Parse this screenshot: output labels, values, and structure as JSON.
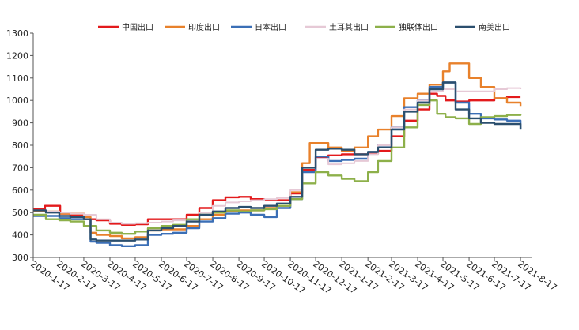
{
  "chart_data": {
    "type": "line",
    "title": "",
    "xlabel": "",
    "ylabel": "",
    "ylim": [
      300,
      1300
    ],
    "yticks": [
      300,
      400,
      500,
      600,
      700,
      800,
      900,
      1000,
      1100,
      1200,
      1300
    ],
    "x_tick_labels": [
      "2020-1-17",
      "2020-2-17",
      "2020-3-17",
      "2020-4-17",
      "2020-5-17",
      "2020-6-17",
      "2020-7-17",
      "2020-8-17",
      "2020-9-17",
      "2020-10-17",
      "2020-11-17",
      "2020-12-17",
      "2021-1-17",
      "2021-2-17",
      "2021-3-17",
      "2021-4-17",
      "2021-5-17",
      "2021-6-17",
      "2021-7-17",
      "2021-8-17"
    ],
    "grid": false,
    "legend_position": "top",
    "series": [
      {
        "name": "中国出口",
        "color": "#e31a1c",
        "points": [
          [
            "2020-1-17",
            515
          ],
          [
            "2020-1-31",
            530
          ],
          [
            "2020-2-17",
            530
          ],
          [
            "2020-2-18",
            495
          ],
          [
            "2020-3-1",
            490
          ],
          [
            "2020-3-17",
            470
          ],
          [
            "2020-4-1",
            465
          ],
          [
            "2020-4-17",
            450
          ],
          [
            "2020-5-1",
            445
          ],
          [
            "2020-5-17",
            448
          ],
          [
            "2020-6-1",
            470
          ],
          [
            "2020-6-17",
            470
          ],
          [
            "2020-7-1",
            470
          ],
          [
            "2020-7-17",
            490
          ],
          [
            "2020-8-1",
            520
          ],
          [
            "2020-8-17",
            555
          ],
          [
            "2020-9-1",
            568
          ],
          [
            "2020-9-17",
            570
          ],
          [
            "2020-10-1",
            560
          ],
          [
            "2020-10-17",
            555
          ],
          [
            "2020-11-1",
            555
          ],
          [
            "2020-11-17",
            585
          ],
          [
            "2020-12-1",
            690
          ],
          [
            "2020-12-17",
            745
          ],
          [
            "2021-1-1",
            755
          ],
          [
            "2021-1-17",
            760
          ],
          [
            "2021-2-1",
            760
          ],
          [
            "2021-2-17",
            762
          ],
          [
            "2021-3-1",
            775
          ],
          [
            "2021-3-17",
            840
          ],
          [
            "2021-4-1",
            910
          ],
          [
            "2021-4-17",
            960
          ],
          [
            "2021-5-1",
            1030
          ],
          [
            "2021-5-10",
            1020
          ],
          [
            "2021-5-20",
            1000
          ],
          [
            "2021-6-1",
            995
          ],
          [
            "2021-6-17",
            1000
          ],
          [
            "2021-7-1",
            1000
          ],
          [
            "2021-7-17",
            1010
          ],
          [
            "2021-8-1",
            1015
          ],
          [
            "2021-8-17",
            1015
          ]
        ]
      },
      {
        "name": "印度出口",
        "color": "#e8812b",
        "points": [
          [
            "2020-1-17",
            505
          ],
          [
            "2020-2-1",
            505
          ],
          [
            "2020-2-17",
            495
          ],
          [
            "2020-3-1",
            495
          ],
          [
            "2020-3-17",
            480
          ],
          [
            "2020-3-25",
            410
          ],
          [
            "2020-4-1",
            400
          ],
          [
            "2020-4-17",
            395
          ],
          [
            "2020-5-1",
            385
          ],
          [
            "2020-5-17",
            390
          ],
          [
            "2020-6-1",
            420
          ],
          [
            "2020-6-17",
            425
          ],
          [
            "2020-7-1",
            425
          ],
          [
            "2020-7-17",
            440
          ],
          [
            "2020-8-1",
            470
          ],
          [
            "2020-8-17",
            490
          ],
          [
            "2020-9-1",
            505
          ],
          [
            "2020-9-17",
            510
          ],
          [
            "2020-10-1",
            510
          ],
          [
            "2020-10-17",
            520
          ],
          [
            "2020-11-1",
            530
          ],
          [
            "2020-11-17",
            590
          ],
          [
            "2020-12-1",
            720
          ],
          [
            "2020-12-10",
            810
          ],
          [
            "2020-12-17",
            810
          ],
          [
            "2021-1-1",
            790
          ],
          [
            "2021-1-17",
            775
          ],
          [
            "2021-2-1",
            790
          ],
          [
            "2021-2-17",
            840
          ],
          [
            "2021-3-1",
            870
          ],
          [
            "2021-3-17",
            930
          ],
          [
            "2021-4-1",
            1010
          ],
          [
            "2021-4-17",
            1030
          ],
          [
            "2021-5-1",
            1070
          ],
          [
            "2021-5-17",
            1130
          ],
          [
            "2021-5-25",
            1165
          ],
          [
            "2021-6-5",
            1165
          ],
          [
            "2021-6-17",
            1100
          ],
          [
            "2021-7-1",
            1060
          ],
          [
            "2021-7-17",
            1010
          ],
          [
            "2021-8-1",
            990
          ],
          [
            "2021-8-17",
            975
          ]
        ]
      },
      {
        "name": "日本出口",
        "color": "#3b6fb6",
        "points": [
          [
            "2020-1-17",
            485
          ],
          [
            "2020-2-1",
            485
          ],
          [
            "2020-2-17",
            475
          ],
          [
            "2020-3-1",
            470
          ],
          [
            "2020-3-17",
            470
          ],
          [
            "2020-3-25",
            370
          ],
          [
            "2020-4-1",
            365
          ],
          [
            "2020-4-17",
            355
          ],
          [
            "2020-5-1",
            350
          ],
          [
            "2020-5-17",
            355
          ],
          [
            "2020-6-1",
            400
          ],
          [
            "2020-6-17",
            405
          ],
          [
            "2020-7-1",
            410
          ],
          [
            "2020-7-17",
            430
          ],
          [
            "2020-8-1",
            460
          ],
          [
            "2020-8-17",
            475
          ],
          [
            "2020-9-1",
            495
          ],
          [
            "2020-9-17",
            500
          ],
          [
            "2020-10-1",
            490
          ],
          [
            "2020-10-17",
            480
          ],
          [
            "2020-11-1",
            520
          ],
          [
            "2020-11-17",
            560
          ],
          [
            "2020-12-1",
            680
          ],
          [
            "2020-12-17",
            750
          ],
          [
            "2021-1-1",
            730
          ],
          [
            "2021-1-17",
            735
          ],
          [
            "2021-2-1",
            740
          ],
          [
            "2021-2-17",
            770
          ],
          [
            "2021-3-1",
            800
          ],
          [
            "2021-3-17",
            880
          ],
          [
            "2021-4-1",
            970
          ],
          [
            "2021-4-17",
            1000
          ],
          [
            "2021-5-1",
            1060
          ],
          [
            "2021-5-17",
            1080
          ],
          [
            "2021-6-1",
            990
          ],
          [
            "2021-6-17",
            940
          ],
          [
            "2021-7-1",
            920
          ],
          [
            "2021-7-17",
            915
          ],
          [
            "2021-8-1",
            910
          ],
          [
            "2021-8-17",
            870
          ]
        ]
      },
      {
        "name": "土耳其出口",
        "color": "#e6c9d6",
        "points": [
          [
            "2020-1-17",
            510
          ],
          [
            "2020-2-1",
            505
          ],
          [
            "2020-2-17",
            500
          ],
          [
            "2020-3-1",
            495
          ],
          [
            "2020-3-17",
            490
          ],
          [
            "2020-4-1",
            470
          ],
          [
            "2020-4-17",
            455
          ],
          [
            "2020-5-1",
            450
          ],
          [
            "2020-5-17",
            452
          ],
          [
            "2020-6-1",
            455
          ],
          [
            "2020-6-17",
            460
          ],
          [
            "2020-7-1",
            465
          ],
          [
            "2020-7-17",
            470
          ],
          [
            "2020-8-1",
            500
          ],
          [
            "2020-8-17",
            530
          ],
          [
            "2020-9-1",
            545
          ],
          [
            "2020-9-17",
            550
          ],
          [
            "2020-10-1",
            555
          ],
          [
            "2020-10-17",
            560
          ],
          [
            "2020-11-1",
            565
          ],
          [
            "2020-11-17",
            600
          ],
          [
            "2020-12-1",
            700
          ],
          [
            "2020-12-17",
            740
          ],
          [
            "2021-1-1",
            715
          ],
          [
            "2021-1-17",
            720
          ],
          [
            "2021-2-1",
            730
          ],
          [
            "2021-2-17",
            760
          ],
          [
            "2021-3-1",
            800
          ],
          [
            "2021-3-17",
            880
          ],
          [
            "2021-4-1",
            960
          ],
          [
            "2021-4-17",
            1000
          ],
          [
            "2021-5-1",
            1040
          ],
          [
            "2021-5-17",
            1050
          ],
          [
            "2021-6-1",
            1040
          ],
          [
            "2021-6-17",
            1040
          ],
          [
            "2021-7-1",
            1040
          ],
          [
            "2021-7-17",
            1050
          ],
          [
            "2021-8-1",
            1055
          ],
          [
            "2021-8-17",
            1050
          ]
        ]
      },
      {
        "name": "独联体出口",
        "color": "#8db04a",
        "points": [
          [
            "2020-1-17",
            490
          ],
          [
            "2020-2-1",
            470
          ],
          [
            "2020-2-17",
            465
          ],
          [
            "2020-3-1",
            460
          ],
          [
            "2020-3-17",
            440
          ],
          [
            "2020-4-1",
            420
          ],
          [
            "2020-4-17",
            410
          ],
          [
            "2020-5-1",
            405
          ],
          [
            "2020-5-17",
            415
          ],
          [
            "2020-6-1",
            430
          ],
          [
            "2020-6-17",
            440
          ],
          [
            "2020-7-1",
            445
          ],
          [
            "2020-7-17",
            470
          ],
          [
            "2020-8-1",
            490
          ],
          [
            "2020-8-17",
            500
          ],
          [
            "2020-9-1",
            510
          ],
          [
            "2020-9-17",
            505
          ],
          [
            "2020-10-1",
            510
          ],
          [
            "2020-10-17",
            515
          ],
          [
            "2020-11-1",
            530
          ],
          [
            "2020-11-17",
            560
          ],
          [
            "2020-12-1",
            630
          ],
          [
            "2020-12-17",
            680
          ],
          [
            "2021-1-1",
            665
          ],
          [
            "2021-1-17",
            650
          ],
          [
            "2021-2-1",
            640
          ],
          [
            "2021-2-17",
            680
          ],
          [
            "2021-3-1",
            730
          ],
          [
            "2021-3-17",
            790
          ],
          [
            "2021-4-1",
            880
          ],
          [
            "2021-4-17",
            980
          ],
          [
            "2021-5-1",
            1000
          ],
          [
            "2021-5-10",
            940
          ],
          [
            "2021-5-20",
            925
          ],
          [
            "2021-6-1",
            920
          ],
          [
            "2021-6-17",
            895
          ],
          [
            "2021-7-1",
            925
          ],
          [
            "2021-7-17",
            930
          ],
          [
            "2021-8-1",
            935
          ],
          [
            "2021-8-17",
            940
          ]
        ]
      },
      {
        "name": "南美出口",
        "color": "#2b4f6e",
        "points": [
          [
            "2020-1-17",
            510
          ],
          [
            "2020-2-1",
            500
          ],
          [
            "2020-2-17",
            485
          ],
          [
            "2020-3-1",
            480
          ],
          [
            "2020-3-17",
            470
          ],
          [
            "2020-3-25",
            380
          ],
          [
            "2020-4-1",
            375
          ],
          [
            "2020-4-17",
            375
          ],
          [
            "2020-5-1",
            375
          ],
          [
            "2020-5-17",
            380
          ],
          [
            "2020-6-1",
            420
          ],
          [
            "2020-6-17",
            430
          ],
          [
            "2020-7-1",
            440
          ],
          [
            "2020-7-17",
            460
          ],
          [
            "2020-8-1",
            490
          ],
          [
            "2020-8-17",
            505
          ],
          [
            "2020-9-1",
            520
          ],
          [
            "2020-9-17",
            525
          ],
          [
            "2020-10-1",
            520
          ],
          [
            "2020-10-17",
            530
          ],
          [
            "2020-11-1",
            540
          ],
          [
            "2020-11-17",
            570
          ],
          [
            "2020-12-1",
            700
          ],
          [
            "2020-12-17",
            780
          ],
          [
            "2021-1-1",
            785
          ],
          [
            "2021-1-17",
            780
          ],
          [
            "2021-2-1",
            760
          ],
          [
            "2021-2-17",
            770
          ],
          [
            "2021-3-1",
            790
          ],
          [
            "2021-3-17",
            870
          ],
          [
            "2021-4-1",
            950
          ],
          [
            "2021-4-17",
            990
          ],
          [
            "2021-5-1",
            1050
          ],
          [
            "2021-5-17",
            1080
          ],
          [
            "2021-6-1",
            960
          ],
          [
            "2021-6-17",
            920
          ],
          [
            "2021-7-1",
            900
          ],
          [
            "2021-7-17",
            895
          ],
          [
            "2021-8-1",
            895
          ],
          [
            "2021-8-17",
            870
          ]
        ]
      }
    ]
  }
}
